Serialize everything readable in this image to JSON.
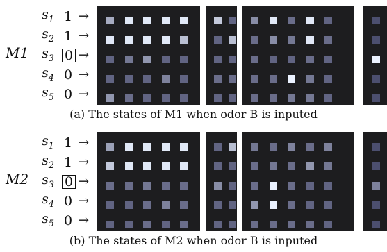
{
  "panels": [
    {
      "module": "M1",
      "caption": "(a)  The states of M1 when odor B is inputed",
      "rows": [
        {
          "s": "s",
          "sub": "1",
          "value": "1",
          "boxed": false
        },
        {
          "s": "s",
          "sub": "2",
          "value": "1",
          "boxed": false
        },
        {
          "s": "s",
          "sub": "3",
          "value": "0",
          "boxed": true
        },
        {
          "s": "s",
          "sub": "4",
          "value": "0",
          "boxed": false
        },
        {
          "s": "s",
          "sub": "5",
          "value": "0",
          "boxed": false
        }
      ],
      "grids": [
        [
          [
            0.65,
            0.95,
            0.95,
            0.95,
            0.95
          ],
          [
            0.95,
            0.95,
            0.95,
            0.95,
            0.75
          ],
          [
            0.3,
            0.4,
            0.55,
            0.3,
            0.3
          ],
          [
            0.3,
            0.3,
            0.3,
            0.45,
            0.3
          ],
          [
            0.55,
            0.35,
            0.3,
            0.3,
            0.3
          ]
        ],
        [
          [
            0.8,
            0.3
          ],
          [
            0.3,
            0.75
          ],
          [
            0.3,
            0.3
          ],
          [
            0.35,
            0.35
          ],
          [
            0.3,
            0.3
          ]
        ],
        [
          [
            0.5,
            0.95,
            0.35,
            0.95,
            0.3
          ],
          [
            0.35,
            0.5,
            0.4,
            0.95,
            0.35
          ],
          [
            0.35,
            0.3,
            0.3,
            0.35,
            0.3
          ],
          [
            0.35,
            0.35,
            1.0,
            0.4,
            0.3
          ],
          [
            0.35,
            0.35,
            0.4,
            0.4,
            0.3
          ]
        ],
        [
          [
            0.2
          ],
          [
            0.2
          ],
          [
            1.0
          ],
          [
            0.2
          ],
          [
            0.2
          ]
        ]
      ]
    },
    {
      "module": "M2",
      "caption": "(b)  The states of M2 when odor B is inputed",
      "rows": [
        {
          "s": "s",
          "sub": "1",
          "value": "1",
          "boxed": false
        },
        {
          "s": "s",
          "sub": "2",
          "value": "1",
          "boxed": false
        },
        {
          "s": "s",
          "sub": "3",
          "value": "0",
          "boxed": true
        },
        {
          "s": "s",
          "sub": "4",
          "value": "0",
          "boxed": false
        },
        {
          "s": "s",
          "sub": "5",
          "value": "0",
          "boxed": false
        }
      ],
      "grids": [
        [
          [
            0.6,
            0.95,
            0.95,
            0.95,
            0.95
          ],
          [
            0.8,
            0.95,
            0.95,
            0.95,
            0.95
          ],
          [
            0.35,
            0.35,
            0.4,
            0.35,
            0.35
          ],
          [
            0.3,
            0.3,
            0.35,
            0.45,
            0.35
          ],
          [
            0.3,
            0.3,
            0.35,
            0.3,
            0.35
          ]
        ],
        [
          [
            0.3,
            0.75
          ],
          [
            0.3,
            0.3
          ],
          [
            0.5,
            0.3
          ],
          [
            0.3,
            0.3
          ],
          [
            0.3,
            0.3
          ]
        ],
        [
          [
            0.4,
            0.35,
            0.45,
            0.35,
            0.45
          ],
          [
            0.35,
            0.4,
            0.35,
            0.55,
            0.4
          ],
          [
            0.35,
            1.0,
            0.35,
            0.3,
            0.3
          ],
          [
            0.55,
            1.0,
            0.35,
            0.3,
            0.3
          ],
          [
            0.35,
            0.35,
            0.35,
            0.35,
            0.3
          ]
        ],
        [
          [
            0.2
          ],
          [
            0.2
          ],
          [
            0.45
          ],
          [
            0.2
          ],
          [
            0.2
          ]
        ]
      ]
    }
  ]
}
